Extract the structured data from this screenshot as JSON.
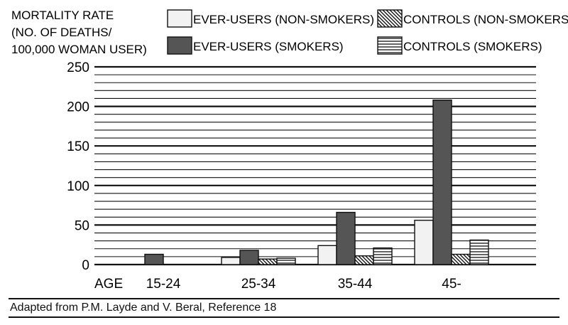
{
  "chart_data": {
    "type": "bar",
    "ylabel": [
      "MORTALITY RATE",
      "(NO. OF DEATHS/",
      "100,000 WOMAN USER)"
    ],
    "xaxis_prefix": "AGE",
    "categories": [
      "15-24",
      "25-34",
      "35-44",
      "45-"
    ],
    "ylim": [
      0,
      250
    ],
    "yticks": [
      0,
      50,
      100,
      150,
      200,
      250
    ],
    "grid": true,
    "legend_position": "top",
    "series": [
      {
        "name": "EVER-USERS (NON-SMOKERS)",
        "pattern": "light",
        "values": [
          0,
          9,
          24,
          56
        ]
      },
      {
        "name": "EVER-USERS (SMOKERS)",
        "pattern": "dark",
        "values": [
          13,
          18,
          66,
          208
        ]
      },
      {
        "name": "CONTROLS (NON-SMOKERS)",
        "pattern": "diagonal",
        "values": [
          0,
          7,
          11,
          13
        ]
      },
      {
        "name": "CONTROLS (SMOKERS)",
        "pattern": "horizontal",
        "values": [
          0,
          8,
          21,
          31
        ]
      }
    ]
  },
  "caption": "Adapted from P.M. Layde and V. Beral, Reference 18",
  "colors": {
    "light": "#f2f2f2",
    "dark": "#555555",
    "ink": "#111111"
  }
}
